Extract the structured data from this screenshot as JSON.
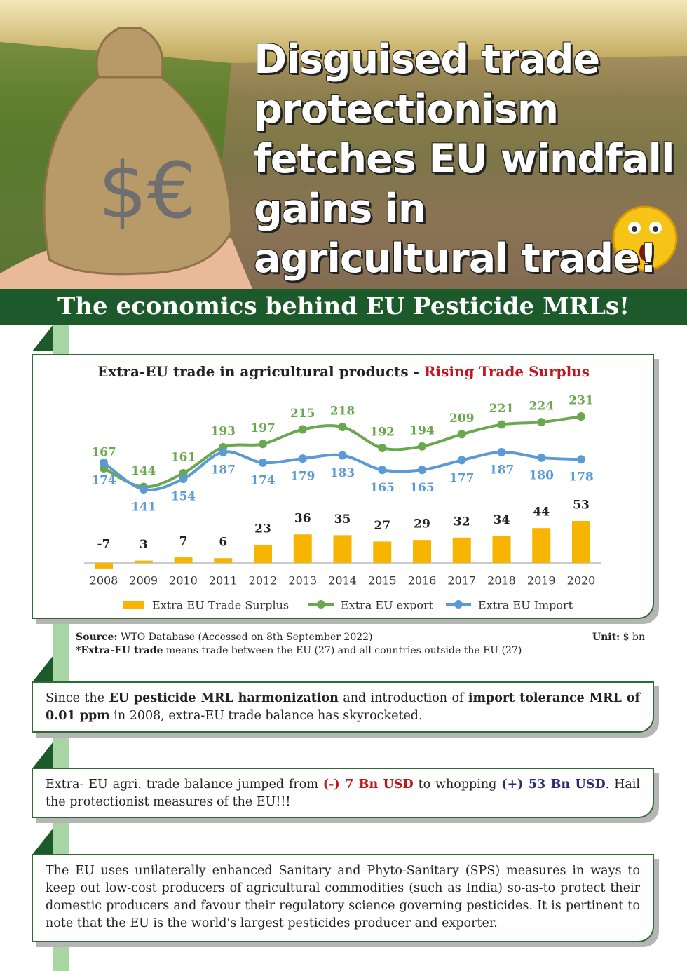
{
  "header": {
    "title": "Disguised trade protectionism fetches EU windfall gains in agricultural trade!",
    "banner": "The economics behind EU Pesticide MRLs!"
  },
  "chart_data": {
    "type": "combo",
    "title": "Extra-EU trade in agricultural products -",
    "subtitle": "Rising Trade Surplus",
    "categories": [
      "2008",
      "2009",
      "2010",
      "2011",
      "2012",
      "2013",
      "2014",
      "2015",
      "2016",
      "2017",
      "2018",
      "2019",
      "2020"
    ],
    "series": [
      {
        "name": "Extra EU Trade Surplus",
        "type": "bar",
        "color": "#f7b500",
        "values": [
          -7,
          3,
          7,
          6,
          23,
          36,
          35,
          27,
          29,
          32,
          34,
          44,
          53
        ]
      },
      {
        "name": "Extra EU export",
        "type": "line",
        "color": "#6aa84f",
        "values": [
          167,
          144,
          161,
          193,
          197,
          215,
          218,
          192,
          194,
          209,
          221,
          224,
          231
        ]
      },
      {
        "name": "Extra EU Import",
        "type": "line",
        "color": "#5b9bd5",
        "values": [
          174,
          141,
          154,
          187,
          174,
          179,
          183,
          165,
          165,
          177,
          187,
          180,
          178
        ]
      }
    ]
  },
  "source": {
    "label": "Source:",
    "text": "WTO Database (Accessed on 8th September 2022)",
    "unit_label": "Unit:",
    "unit": "$ bn",
    "note_term": "*Extra-EU trade",
    "note_text": " means trade between the EU (27) and all countries outside the EU (27)"
  },
  "boxes": [
    [
      "Since the ",
      "EU pesticide MRL harmonization",
      " and introduction of ",
      "import tolerance MRL of 0.01 ppm",
      " in 2008, extra-EU trade balance has skyrocketed."
    ],
    [
      "Extra- EU agri. trade balance jumped from ",
      "(-) 7 Bn USD",
      " to whopping ",
      "(+) 53 Bn USD",
      ". Hail the protectionist measures of the EU!!!"
    ],
    [
      "The EU uses unilaterally enhanced Sanitary and Phyto-Sanitary (SPS) measures in ways to keep out low-cost producers of agricultural commodities (such as India) so-as-to protect their domestic producers and favour their regulatory science governing pesticides. It is pertinent to note that the EU is the world's largest pesticides producer and exporter."
    ]
  ]
}
